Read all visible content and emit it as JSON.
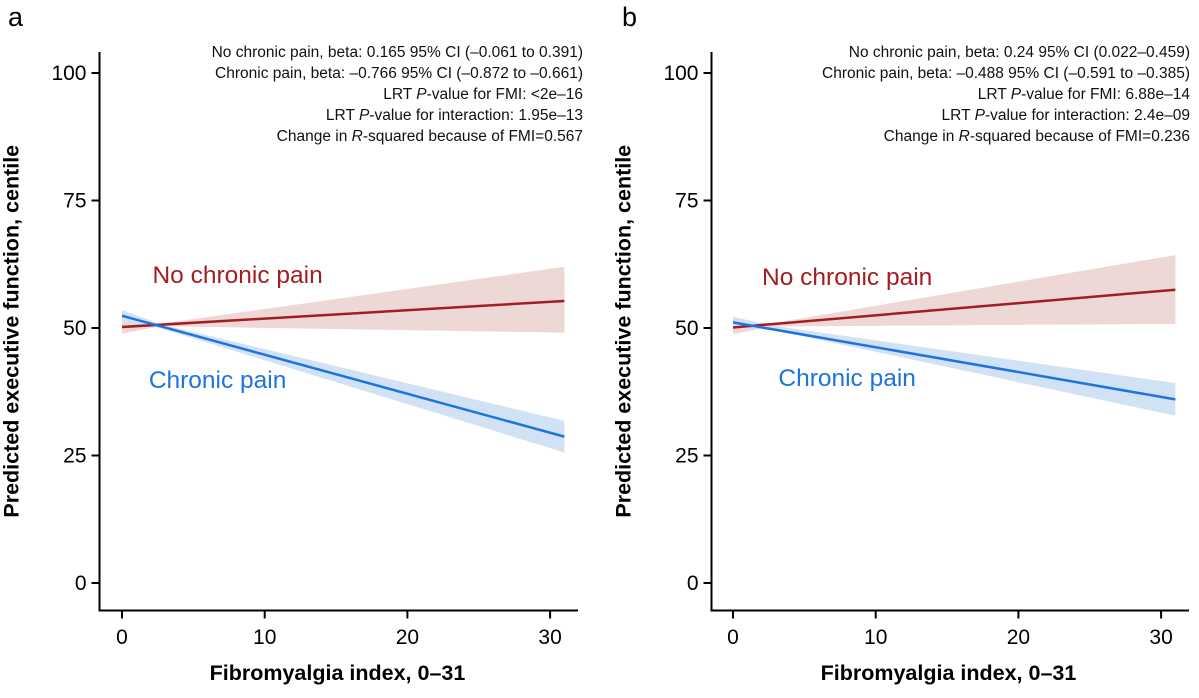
{
  "figure": {
    "background": "#ffffff",
    "axis_color": "#000000",
    "annotation_text_color": "#111111"
  },
  "chart_data": [
    {
      "type": "line",
      "panel_label": "a",
      "xlabel": "Fibromyalgia index, 0–31",
      "ylabel": "Predicted executive function, centile",
      "xlim": [
        0,
        31
      ],
      "ylim": [
        0,
        100
      ],
      "x_ticks": [
        0,
        10,
        20,
        30
      ],
      "y_ticks": [
        0,
        25,
        50,
        75,
        100
      ],
      "grid": false,
      "legend_position": "inline-labels",
      "series": [
        {
          "name": "No chronic pain",
          "color": "#a21e23",
          "band_color": "#eed8d6",
          "line": {
            "x": [
              0,
              31
            ],
            "y": [
              50.2,
              55.3
            ]
          },
          "band": {
            "x": [
              0,
              2.7,
              31
            ],
            "lower": [
              48.9,
              50.35,
              49.1
            ],
            "upper": [
              51.4,
              50.85,
              62.0
            ]
          },
          "label_pos": {
            "x": 8.1,
            "y": 60.4
          }
        },
        {
          "name": "Chronic pain",
          "color": "#1e74dc",
          "band_color": "#d2e2f5",
          "line": {
            "x": [
              0,
              31
            ],
            "y": [
              52.4,
              28.7
            ]
          },
          "band": {
            "x": [
              0,
              2.7,
              31
            ],
            "lower": [
              51.3,
              49.95,
              25.6
            ],
            "upper": [
              53.5,
              50.75,
              31.8
            ]
          },
          "label_pos": {
            "x": 6.7,
            "y": 39.8
          }
        }
      ],
      "annotation_lines": [
        [
          {
            "t": "No chronic pain, beta: 0.165 95% CI (–0.061 to 0.391)"
          }
        ],
        [
          {
            "t": "Chronic pain, beta: –0.766 95% CI (–0.872 to –0.661)"
          }
        ],
        [
          {
            "t": "LRT "
          },
          {
            "t": "P",
            "i": true
          },
          {
            "t": "-value for FMI: <2e–16"
          }
        ],
        [
          {
            "t": "LRT "
          },
          {
            "t": "P",
            "i": true
          },
          {
            "t": "-value for interaction: 1.95e–13"
          }
        ],
        [
          {
            "t": "Change in "
          },
          {
            "t": "R",
            "i": true
          },
          {
            "t": "-squared because of FMI=0.567"
          }
        ]
      ]
    },
    {
      "type": "line",
      "panel_label": "b",
      "xlabel": "Fibromyalgia index, 0–31",
      "ylabel": "Predicted executive function, centile",
      "xlim": [
        0,
        31
      ],
      "ylim": [
        0,
        100
      ],
      "x_ticks": [
        0,
        10,
        20,
        30
      ],
      "y_ticks": [
        0,
        25,
        50,
        75,
        100
      ],
      "grid": false,
      "legend_position": "inline-labels",
      "series": [
        {
          "name": "No chronic pain",
          "color": "#a21e23",
          "band_color": "#eed8d6",
          "line": {
            "x": [
              0,
              31
            ],
            "y": [
              50.1,
              57.5
            ]
          },
          "band": {
            "x": [
              0,
              2.7,
              31
            ],
            "lower": [
              48.8,
              50.3,
              50.8
            ],
            "upper": [
              51.4,
              50.9,
              64.3
            ]
          },
          "label_pos": {
            "x": 8.0,
            "y": 60.0
          }
        },
        {
          "name": "Chronic pain",
          "color": "#1e74dc",
          "band_color": "#d2e2f5",
          "line": {
            "x": [
              0,
              31
            ],
            "y": [
              51.1,
              36.0
            ]
          },
          "band": {
            "x": [
              0,
              2.7,
              31
            ],
            "lower": [
              50.0,
              49.7,
              32.8
            ],
            "upper": [
              52.2,
              50.5,
              39.2
            ]
          },
          "label_pos": {
            "x": 8.0,
            "y": 40.2
          }
        }
      ],
      "annotation_lines": [
        [
          {
            "t": "No chronic pain, beta: 0.24 95% CI (0.022–0.459)"
          }
        ],
        [
          {
            "t": "Chronic pain, beta: –0.488 95% CI (–0.591 to –0.385)"
          }
        ],
        [
          {
            "t": "LRT "
          },
          {
            "t": "P",
            "i": true
          },
          {
            "t": "-value for FMI: 6.88e–14"
          }
        ],
        [
          {
            "t": "LRT "
          },
          {
            "t": "P",
            "i": true
          },
          {
            "t": "-value for interaction: 2.4e–09"
          }
        ],
        [
          {
            "t": "Change in "
          },
          {
            "t": "R",
            "i": true
          },
          {
            "t": "-squared because of FMI=0.236"
          }
        ]
      ]
    }
  ]
}
